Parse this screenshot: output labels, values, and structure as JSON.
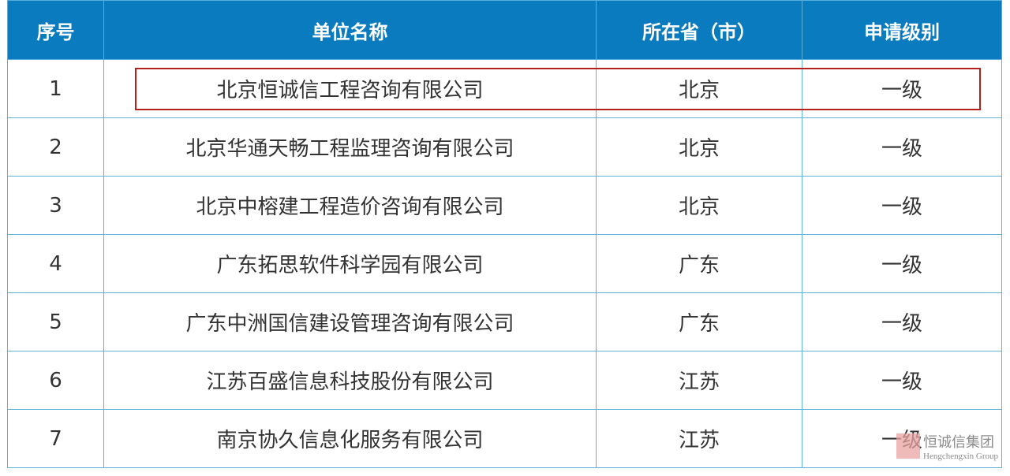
{
  "headers": [
    "序号",
    "单位名称",
    "所在省（市）",
    "申请级别"
  ],
  "rows": [
    [
      "1",
      "北京恒诚信工程咨询有限公司",
      "北京",
      "一级"
    ],
    [
      "2",
      "北京华通天畅工程监理咨询有限公司",
      "北京",
      "一级"
    ],
    [
      "3",
      "北京中榕建工程造价咨询有限公司",
      "北京",
      "一级"
    ],
    [
      "4",
      "广东拓思软件科学园有限公司",
      "广东",
      "一级"
    ],
    [
      "5",
      "广东中洲国信建设管理咨询有限公司",
      "广东",
      "一级"
    ],
    [
      "6",
      "江苏百盛信息科技股份有限公司",
      "江苏",
      "一级"
    ],
    [
      "7",
      "南京协久信息化服务有限公司",
      "江苏",
      "一级"
    ]
  ],
  "highlighted_row": 1,
  "colors": {
    "header_bg": "#0b7bbf",
    "highlight": "#b5201c"
  },
  "watermark": {
    "logo": "恒信",
    "name": "恒诚信集团",
    "sub": "Hengchengxin Group"
  }
}
